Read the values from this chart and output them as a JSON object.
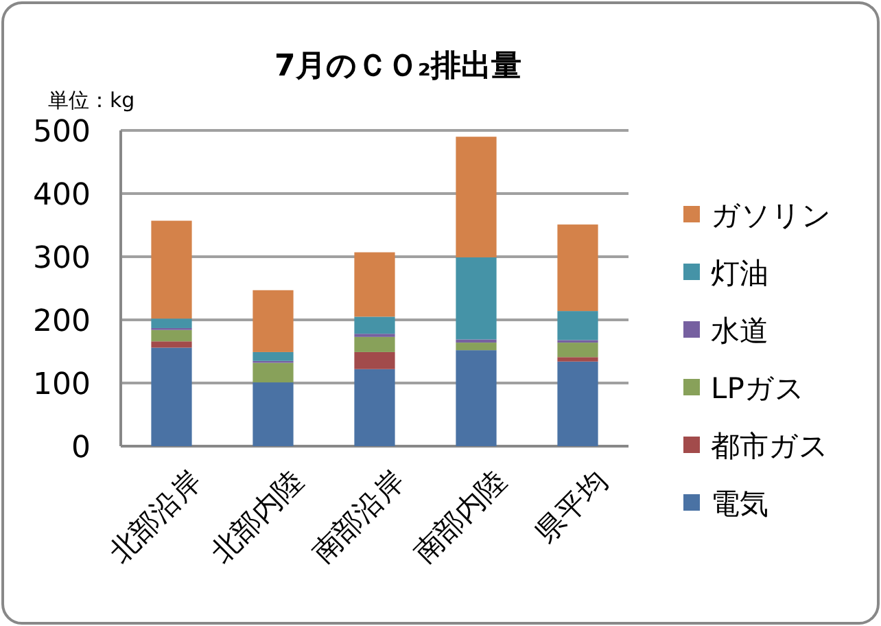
{
  "chart_data": {
    "type": "bar",
    "title": "7月のＣＯ₂排出量",
    "ylabel": "単位：kg",
    "stacked": true,
    "categories": [
      "北部沿岸",
      "北部内陸",
      "南部沿岸",
      "南部内陸",
      "県平均"
    ],
    "series": [
      {
        "name": "電気",
        "color": "#4a72a4",
        "values": [
          156,
          101,
          122,
          152,
          134
        ]
      },
      {
        "name": "都市ガス",
        "color": "#a24b4b",
        "values": [
          10,
          0,
          27,
          0,
          7
        ]
      },
      {
        "name": "LPガス",
        "color": "#88a15a",
        "values": [
          18,
          31,
          24,
          12,
          23
        ]
      },
      {
        "name": "水道",
        "color": "#7660a0",
        "values": [
          3,
          3,
          5,
          5,
          4
        ]
      },
      {
        "name": "灯油",
        "color": "#4593a7",
        "values": [
          15,
          14,
          27,
          130,
          46
        ]
      },
      {
        "name": "ガソリン",
        "color": "#d4824a",
        "values": [
          155,
          98,
          102,
          191,
          137
        ]
      }
    ],
    "ylim": [
      0,
      500
    ],
    "yticks": [
      0,
      100,
      200,
      300,
      400,
      500
    ],
    "grid": "y",
    "legend": "right"
  }
}
